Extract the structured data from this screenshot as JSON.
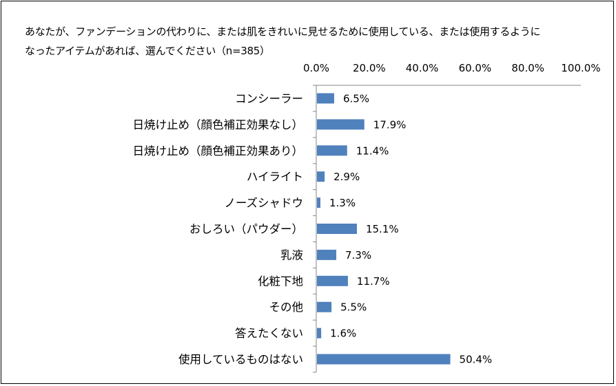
{
  "chart_data": {
    "type": "bar",
    "orientation": "horizontal",
    "title": "あなたが、ファンデーションの代わりに、または肌をきれいに見せるために使用している、または使用するようになったアイテムがあれば、選んでください（n=385）",
    "categories": [
      "コンシーラー",
      "日焼け止め（顔色補正効果なし）",
      "日焼け止め（顔色補正効果あり）",
      "ハイライト",
      "ノーズシャドウ",
      "おしろい（パウダー）",
      "乳液",
      "化粧下地",
      "その他",
      "答えたくない",
      "使用しているものはない"
    ],
    "values": [
      6.5,
      17.9,
      11.4,
      2.9,
      1.3,
      15.1,
      7.3,
      11.7,
      5.5,
      1.6,
      50.4
    ],
    "value_labels": [
      "6.5%",
      "17.9%",
      "11.4%",
      "2.9%",
      "1.3%",
      "15.1%",
      "7.3%",
      "11.7%",
      "5.5%",
      "1.6%",
      "50.4%"
    ],
    "x_ticks": [
      "0.0%",
      "20.0%",
      "40.0%",
      "60.0%",
      "80.0%",
      "100.0%"
    ],
    "xlim": [
      0,
      100
    ],
    "axis_position": "top",
    "bar_color": "#4f81bd",
    "grid": false,
    "legend": "none"
  }
}
